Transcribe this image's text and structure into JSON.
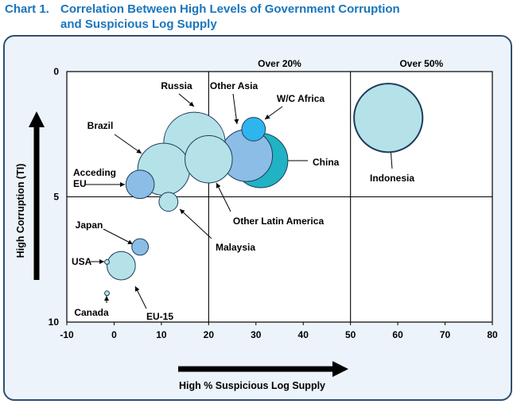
{
  "page": {
    "chart_number": "Chart 1.",
    "title_line1": "Correlation Between High Levels of Government Corruption",
    "title_line2": "and Suspicious Log Supply"
  },
  "chart_data": {
    "type": "scatter",
    "subtype": "bubble",
    "xlabel": "High % Suspicious Log Supply",
    "ylabel": "High Corruption (TI)",
    "xlim": [
      -10,
      80
    ],
    "ylim": [
      10,
      0
    ],
    "y_axis_inverted": true,
    "x_ticks": [
      -10,
      0,
      10,
      20,
      30,
      40,
      50,
      60,
      70,
      80
    ],
    "y_ticks": [
      0,
      5,
      10
    ],
    "y_tick_labels": [
      "0",
      "5",
      "10"
    ],
    "quadrant_lines": {
      "x": [
        20,
        50
      ],
      "y": [
        5
      ]
    },
    "quadrant_headers": [
      {
        "label": "Over 20%",
        "x_from": 20,
        "x_to": 50
      },
      {
        "label": "Over 50%",
        "x_from": 50,
        "x_to": 80
      }
    ],
    "grid": false,
    "legend": "none",
    "colors": {
      "panel_background": "#ecf3fa",
      "plot_background": "#ffffff",
      "panel_border": "#2f4f74",
      "title": "#1a75bb",
      "bubble_light": "#b5e2e8",
      "bubble_mid": "#8cbde6",
      "bubble_teal": "#21b3c4",
      "bubble_cyan": "#2eb5ee",
      "bubble_stroke": "#1e3d5e"
    },
    "points": [
      {
        "name": "Indonesia",
        "x": 58,
        "y": 1.85,
        "size": 14.5,
        "color": "#b5e2e8"
      },
      {
        "name": "China",
        "x": 31,
        "y": 3.55,
        "size": 11.5,
        "color": "#21b3c4"
      },
      {
        "name": "Other Asia",
        "x": 28,
        "y": 3.35,
        "size": 11.0,
        "color": "#8cbde6"
      },
      {
        "name": "Russia",
        "x": 17,
        "y": 2.85,
        "size": 13.0,
        "color": "#b5e2e8"
      },
      {
        "name": "Brazil",
        "x": 10.5,
        "y": 3.9,
        "size": 11.0,
        "color": "#b5e2e8"
      },
      {
        "name": "Other Latin America",
        "x": 20,
        "y": 3.5,
        "size": 10.0,
        "color": "#b5e2e8"
      },
      {
        "name": "W/C Africa",
        "x": 29.5,
        "y": 2.3,
        "size": 5.0,
        "color": "#2eb5ee"
      },
      {
        "name": "Acceding EU",
        "x": 5.5,
        "y": 4.5,
        "size": 6.0,
        "color": "#8cbde6"
      },
      {
        "name": "Malaysia",
        "x": 11.5,
        "y": 5.2,
        "size": 4.0,
        "color": "#b5e2e8"
      },
      {
        "name": "Japan",
        "x": 5.5,
        "y": 7.0,
        "size": 3.5,
        "color": "#8cbde6"
      },
      {
        "name": "EU-15",
        "x": 1.5,
        "y": 7.75,
        "size": 6.0,
        "color": "#b5e2e8"
      },
      {
        "name": "USA",
        "x": -1.5,
        "y": 7.6,
        "size": 1.0,
        "color": "#b5e2e8"
      },
      {
        "name": "Canada",
        "x": -1.5,
        "y": 8.85,
        "size": 1.0,
        "color": "#b5e2e8"
      }
    ]
  }
}
